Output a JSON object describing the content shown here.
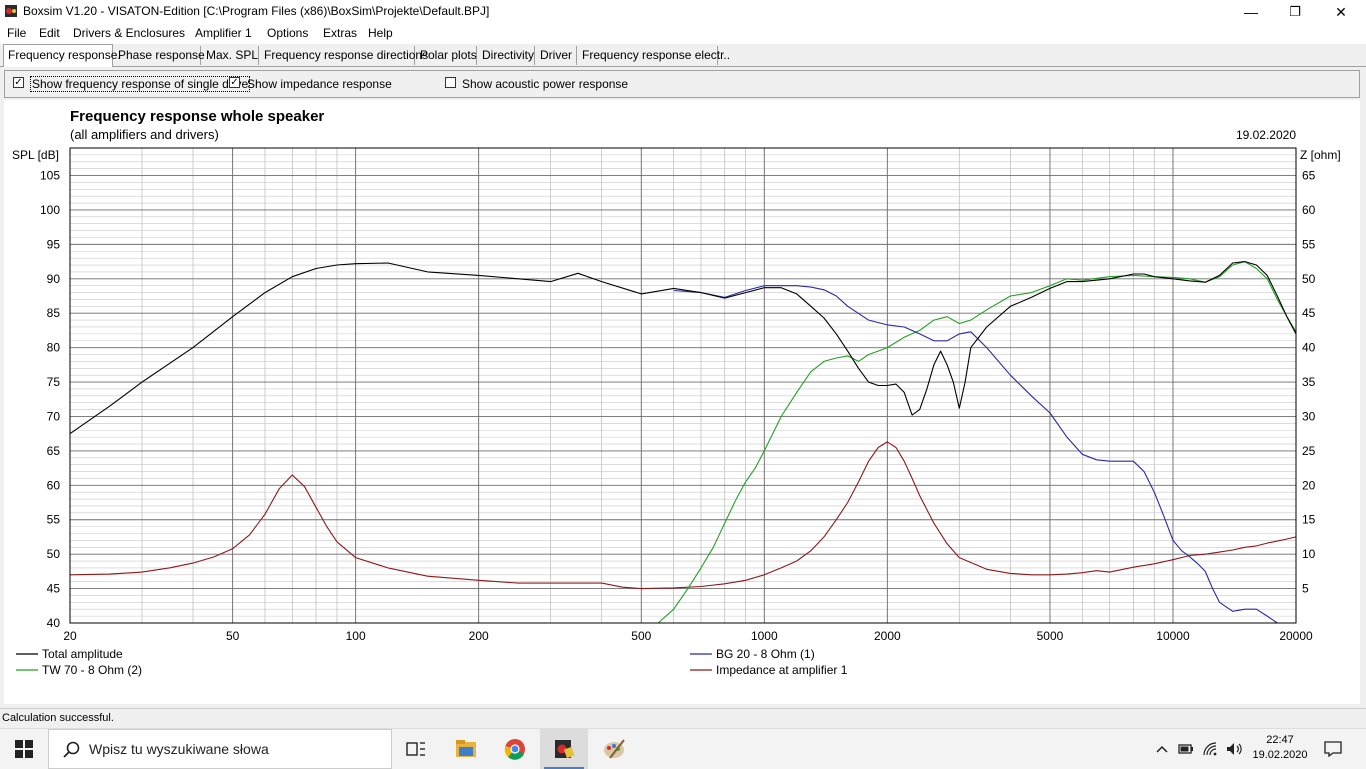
{
  "window": {
    "title": "Boxsim V1.20 - VISATON-Edition [C:\\Program Files (x86)\\BoxSim\\Projekte\\Default.BPJ]",
    "minimize": "—",
    "maximize": "❐",
    "close": "✕"
  },
  "menu": [
    "File",
    "Edit",
    "Drivers & Enclosures",
    "Amplifier 1",
    "Options",
    "Extras",
    "Help"
  ],
  "tabs": [
    "Frequency response.",
    "Phase response",
    "Max. SPL",
    "Frequency response directions",
    "Polar plots",
    "Directivity",
    "Driver",
    "Frequency response electr.."
  ],
  "options": {
    "single_drivers": {
      "label": "Show frequency response of single drive",
      "checked": true
    },
    "impedance": {
      "label": "Show impedance response",
      "checked": true
    },
    "acoustic_power": {
      "label": "Show acoustic power response",
      "checked": false
    }
  },
  "chart_data": {
    "type": "line",
    "title": "Frequency response whole speaker",
    "subtitle": "(all amplifiers and drivers)",
    "date": "19.02.2020",
    "ylabel": "SPL [dB]",
    "y2label": "Z [ohm]",
    "x_scale": "log",
    "xlim": [
      20,
      20000
    ],
    "ylim": [
      40,
      109
    ],
    "y2lim": [
      0,
      69
    ],
    "grid": true,
    "legend_position": "bottom",
    "x_ticks": [
      "20",
      "50",
      "100",
      "200",
      "500",
      "1000",
      "2000",
      "5000",
      "10000",
      "20000"
    ],
    "y_ticks": [
      "40",
      "45",
      "50",
      "55",
      "60",
      "65",
      "70",
      "75",
      "80",
      "85",
      "90",
      "95",
      "100",
      "105"
    ],
    "y2_ticks": [
      "5",
      "10",
      "15",
      "20",
      "25",
      "30",
      "35",
      "40",
      "45",
      "50",
      "55",
      "60",
      "65"
    ],
    "series": [
      {
        "name": "Total amplitude",
        "axis": "left",
        "color": "#000000",
        "x": [
          20,
          25,
          30,
          40,
          50,
          60,
          70,
          80,
          90,
          100,
          120,
          150,
          200,
          250,
          300,
          350,
          400,
          500,
          600,
          700,
          800,
          900,
          1000,
          1100,
          1200,
          1300,
          1400,
          1500,
          1600,
          1700,
          1800,
          1900,
          2000,
          2100,
          2200,
          2300,
          2400,
          2500,
          2600,
          2700,
          2800,
          2900,
          3000,
          3100,
          3200,
          3500,
          4000,
          4500,
          5000,
          5500,
          6000,
          7000,
          8000,
          8500,
          9000,
          10000,
          11000,
          12000,
          13000,
          14000,
          15000,
          16000,
          17000,
          18000,
          19000,
          20000
        ],
        "y": [
          67.5,
          71.5,
          75,
          80,
          84.5,
          88,
          90.3,
          91.5,
          92,
          92.2,
          92.3,
          91,
          90.5,
          90,
          89.6,
          90.8,
          89.6,
          87.8,
          88.6,
          88,
          87.2,
          88,
          88.7,
          88.7,
          87.8,
          86,
          84.3,
          82,
          79.5,
          77,
          75,
          74.5,
          74.5,
          74.7,
          73.5,
          70.2,
          71,
          74,
          77.5,
          79.5,
          77.5,
          75,
          71.2,
          75,
          80,
          83,
          86,
          87.3,
          88.6,
          89.6,
          89.6,
          90,
          90.7,
          90.7,
          90.3,
          90,
          89.7,
          89.5,
          90.5,
          92.3,
          92.5,
          92,
          90.5,
          87.5,
          84.5,
          82
        ]
      },
      {
        "name": "BG 20 - 8 Ohm      (1)",
        "axis": "left",
        "color": "#2a2aa0",
        "x": [
          600,
          700,
          800,
          900,
          1000,
          1100,
          1200,
          1300,
          1400,
          1500,
          1600,
          1800,
          2000,
          2200,
          2400,
          2600,
          2800,
          3000,
          3200,
          3500,
          4000,
          4500,
          5000,
          5500,
          6000,
          6500,
          7000,
          8000,
          8500,
          9000,
          9500,
          10000,
          10500,
          11000,
          11500,
          12000,
          12500,
          13000,
          14000,
          15000,
          16000,
          17000,
          18000,
          19000,
          20000
        ],
        "y": [
          88.3,
          88,
          87.3,
          88.3,
          89,
          89,
          89,
          88.8,
          88.4,
          87.5,
          86,
          84,
          83.3,
          83,
          82,
          81,
          81,
          82,
          82.3,
          80,
          76,
          73,
          70.5,
          67,
          64.5,
          63.7,
          63.5,
          63.5,
          62,
          59,
          55.5,
          52,
          50.5,
          49.6,
          48.6,
          47.5,
          45,
          43,
          41.7,
          42,
          42,
          41,
          40,
          40,
          40
        ]
      },
      {
        "name": "TW 70 - 8 Ohm (2)",
        "axis": "left",
        "color": "#22a022",
        "x": [
          20,
          100,
          300,
          550,
          600,
          650,
          700,
          750,
          800,
          850,
          900,
          950,
          1000,
          1100,
          1200,
          1300,
          1400,
          1500,
          1600,
          1700,
          1800,
          1900,
          2000,
          2200,
          2400,
          2600,
          2800,
          3000,
          3200,
          3500,
          4000,
          4500,
          5000,
          5500,
          6000,
          7000,
          8000,
          9000,
          10000,
          11000,
          12000,
          13000,
          14000,
          15000,
          16000,
          17000,
          18000,
          19000,
          20000
        ],
        "y": [
          40,
          40,
          40,
          40,
          42,
          45,
          48,
          51,
          54.5,
          57.8,
          60.5,
          62.5,
          65,
          70,
          73.5,
          76.5,
          78,
          78.5,
          78.8,
          78,
          79,
          79.5,
          80,
          81.5,
          82.5,
          84,
          84.5,
          83.5,
          84,
          85.5,
          87.5,
          88,
          89,
          90,
          89.8,
          90.3,
          90.5,
          90.3,
          90.2,
          90,
          89.5,
          90.3,
          92,
          92.5,
          91.5,
          90,
          87,
          84.5,
          82.3
        ]
      },
      {
        "name": "Impedance at amplifier 1",
        "axis": "right",
        "color": "#8b1a1a",
        "x": [
          20,
          25,
          30,
          35,
          40,
          45,
          50,
          55,
          60,
          65,
          70,
          75,
          80,
          85,
          90,
          100,
          120,
          150,
          200,
          250,
          300,
          400,
          450,
          500,
          600,
          700,
          800,
          900,
          1000,
          1100,
          1200,
          1300,
          1400,
          1500,
          1600,
          1700,
          1800,
          1900,
          2000,
          2100,
          2200,
          2300,
          2400,
          2600,
          2800,
          3000,
          3500,
          4000,
          4500,
          5000,
          5500,
          6000,
          6500,
          7000,
          8000,
          9000,
          10000,
          11000,
          12000,
          13000,
          14000,
          15000,
          16000,
          17000,
          18000,
          19000,
          20000
        ],
        "y": [
          7,
          7.1,
          7.4,
          8,
          8.7,
          9.6,
          10.8,
          12.8,
          15.8,
          19.5,
          21.5,
          19.8,
          16.8,
          14,
          11.8,
          9.5,
          8,
          6.8,
          6.2,
          5.8,
          5.8,
          5.8,
          5.2,
          5,
          5.1,
          5.3,
          5.7,
          6.2,
          7,
          8,
          9,
          10.5,
          12.5,
          15,
          17.5,
          20.5,
          23.5,
          25.5,
          26.3,
          25.5,
          23.5,
          21,
          18.5,
          14.5,
          11.5,
          9.5,
          7.8,
          7.2,
          7,
          7,
          7.1,
          7.3,
          7.6,
          7.4,
          8.1,
          8.6,
          9.2,
          9.8,
          10,
          10.3,
          10.6,
          11,
          11.2,
          11.6,
          11.9,
          12.2,
          12.5
        ]
      }
    ]
  },
  "status": "Calculation successful.",
  "taskbar": {
    "search_placeholder": "Wpisz tu wyszukiwane słowa",
    "apps": [
      "task-view",
      "file-explorer",
      "chrome",
      "boxsim",
      "paint"
    ],
    "time": "22:47",
    "date": "19.02.2020"
  }
}
